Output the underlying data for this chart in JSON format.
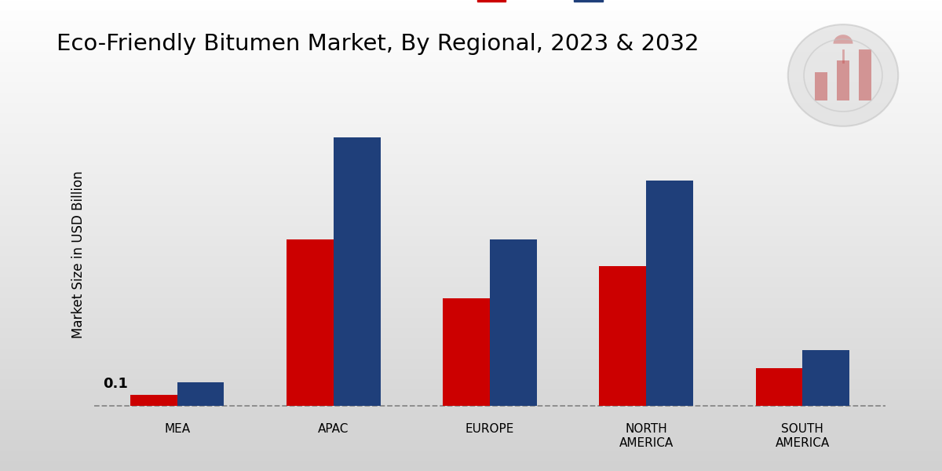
{
  "title": "Eco-Friendly Bitumen Market, By Regional, 2023 & 2032",
  "ylabel": "Market Size in USD Billion",
  "categories": [
    "MEA",
    "APAC",
    "EUROPE",
    "NORTH\nAMERICA",
    "SOUTH\nAMERICA"
  ],
  "values_2023": [
    0.1,
    1.55,
    1.0,
    1.3,
    0.35
  ],
  "values_2032": [
    0.22,
    2.5,
    1.55,
    2.1,
    0.52
  ],
  "color_2023": "#cc0000",
  "color_2032": "#1f3f7a",
  "annotation_text": "0.1",
  "bar_width": 0.3,
  "title_fontsize": 21,
  "label_fontsize": 12,
  "tick_fontsize": 11,
  "legend_fontsize": 13,
  "ylim": [
    -0.08,
    2.9
  ],
  "red_band_color": "#cc0000"
}
